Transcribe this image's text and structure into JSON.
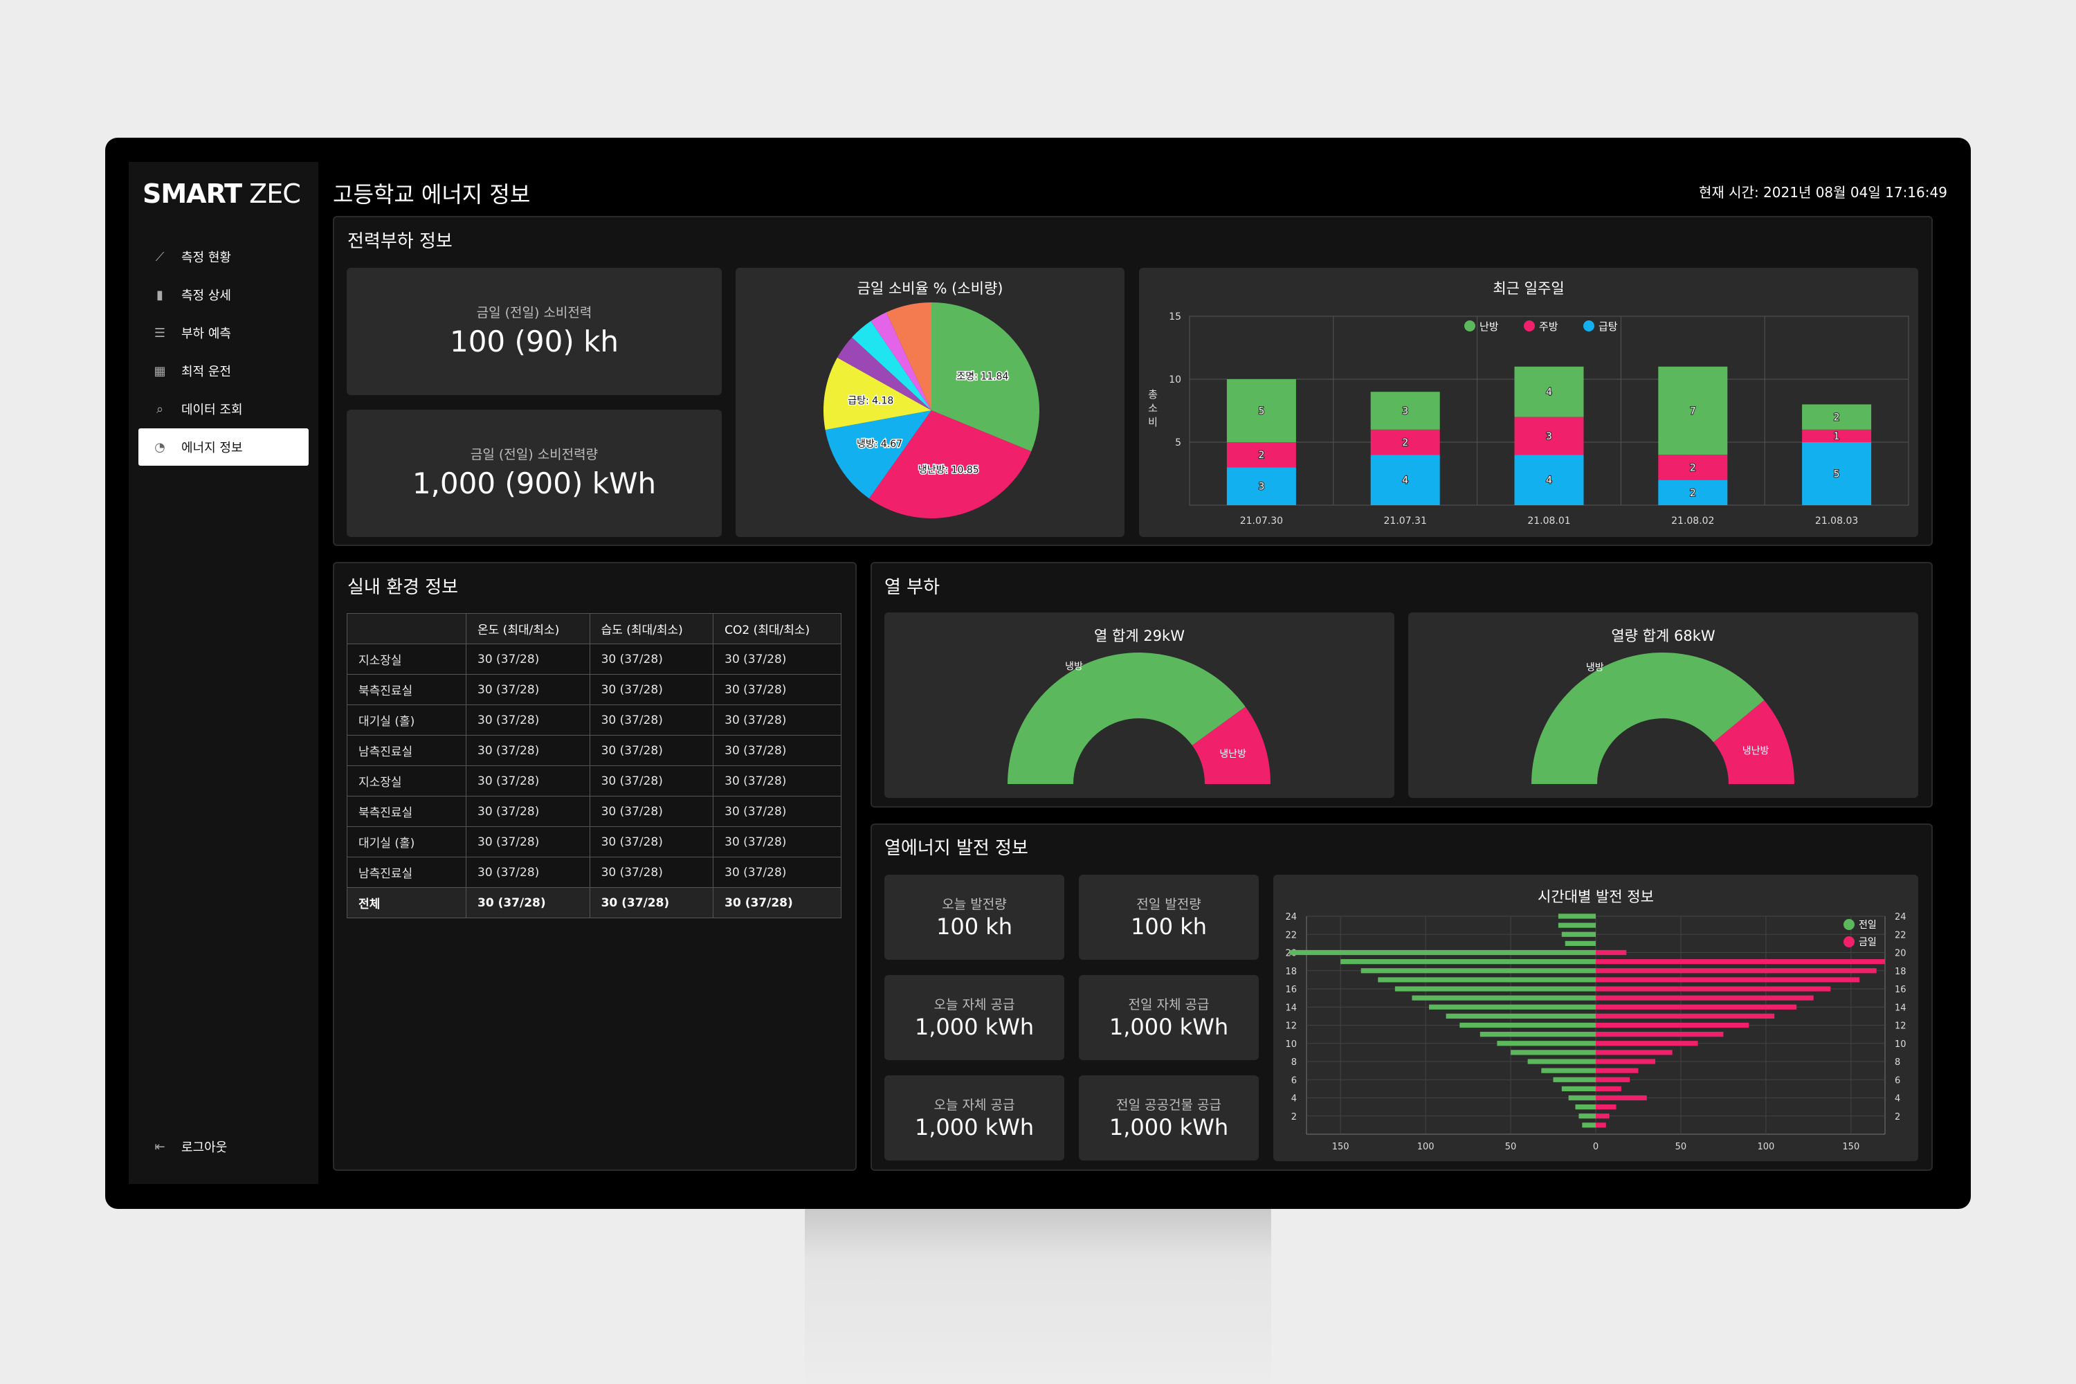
{
  "app": {
    "brand_bold": "SMART",
    "brand_light": " ZEC",
    "page_title": "고등학교 에너지 정보",
    "clock": "현재 시간: 2021년 08월 04일 17:16:49"
  },
  "nav": [
    {
      "label": "측정 현황",
      "icon": "trend-icon"
    },
    {
      "label": "측정 상세",
      "icon": "bar-chart-icon"
    },
    {
      "label": "부하 예측",
      "icon": "gantt-icon"
    },
    {
      "label": "최적 운전",
      "icon": "table-icon"
    },
    {
      "label": "데이터 조회",
      "icon": "search-icon"
    },
    {
      "label": "에너지 정보",
      "icon": "pie-icon",
      "active": true
    }
  ],
  "logout": "로그아웃",
  "power": {
    "title": "전력부하 정보",
    "card1_label": "금일 (전일) 소비전력",
    "card1_value": "100 (90) kh",
    "card2_label": "금일 (전일) 소비전력량",
    "card2_value": "1,000 (900) kWh",
    "pie_title": "금일 소비율 % (소비량)",
    "week_title": "최근 일주일"
  },
  "indoor": {
    "title": "실내 환경 정보",
    "headers": [
      "",
      "온도 (최대/최소)",
      "습도 (최대/최소)",
      "CO2 (최대/최소)"
    ],
    "rows": [
      [
        "지소장실",
        "30 (37/28)",
        "30 (37/28)",
        "30 (37/28)"
      ],
      [
        "북측진료실",
        "30 (37/28)",
        "30 (37/28)",
        "30 (37/28)"
      ],
      [
        "대기실 (홀)",
        "30 (37/28)",
        "30 (37/28)",
        "30 (37/28)"
      ],
      [
        "남측진료실",
        "30 (37/28)",
        "30 (37/28)",
        "30 (37/28)"
      ],
      [
        "지소장실",
        "30 (37/28)",
        "30 (37/28)",
        "30 (37/28)"
      ],
      [
        "북측진료실",
        "30 (37/28)",
        "30 (37/28)",
        "30 (37/28)"
      ],
      [
        "대기실 (홀)",
        "30 (37/28)",
        "30 (37/28)",
        "30 (37/28)"
      ],
      [
        "남측진료실",
        "30 (37/28)",
        "30 (37/28)",
        "30 (37/28)"
      ],
      [
        "전체",
        "30 (37/28)",
        "30 (37/28)",
        "30 (37/28)"
      ]
    ]
  },
  "heat": {
    "title": "열 부하",
    "gauge1_title": "열 합계 29kW",
    "gauge2_title": "열량 합계 68kW"
  },
  "gen": {
    "title": "열에너지 발전 정보",
    "cards": [
      {
        "label": "오늘 발전량",
        "value": "100 kh"
      },
      {
        "label": "전일 발전량",
        "value": "100 kh"
      },
      {
        "label": "오늘 자체 공급",
        "value": "1,000 kWh"
      },
      {
        "label": "전일 자체 공급",
        "value": "1,000 kWh"
      },
      {
        "label": "오늘 자체 공급",
        "value": "1,000 kWh"
      },
      {
        "label": "전일 공공건물 공급",
        "value": "1,000 kWh"
      }
    ],
    "hourly_title": "시간대별 발전 정보"
  },
  "colors": {
    "green": "#5cb85c",
    "pink": "#f0206a",
    "blue": "#12b0ef",
    "yellow": "#f0f037"
  },
  "chart_data": [
    {
      "type": "pie",
      "title": "금일 소비율 % (소비량)",
      "slices": [
        {
          "label": "조명: 11.84",
          "value": 11.84,
          "color": "#5cb85c"
        },
        {
          "label": "냉난방: 10.85",
          "value": 10.85,
          "color": "#f0206a"
        },
        {
          "label": "냉방: 4.67",
          "value": 4.67,
          "color": "#12b0ef"
        },
        {
          "label": "급탕: 4.18",
          "value": 4.18,
          "color": "#f0f037"
        },
        {
          "label": "",
          "value": 1.4,
          "color": "#9b47b5"
        },
        {
          "label": "",
          "value": 1.4,
          "color": "#1fe5f0"
        },
        {
          "label": "",
          "value": 1.0,
          "color": "#e364e8"
        },
        {
          "label": "",
          "value": 2.6,
          "color": "#f47a50"
        }
      ]
    },
    {
      "type": "bar",
      "stacked": true,
      "title": "최근 일주일",
      "ylabel": "총 소 비",
      "categories": [
        "21.07.30",
        "21.07.31",
        "21.08.01",
        "21.08.02",
        "21.08.03"
      ],
      "ylim": [
        0,
        15
      ],
      "yticks": [
        5,
        10,
        15
      ],
      "series": [
        {
          "name": "급탕",
          "color": "#12b0ef",
          "values": [
            3,
            4,
            4,
            2,
            5
          ]
        },
        {
          "name": "주방",
          "color": "#f0206a",
          "values": [
            2,
            2,
            3,
            2,
            1
          ]
        },
        {
          "name": "난방",
          "color": "#5cb85c",
          "values": [
            5,
            3,
            4,
            7,
            2
          ]
        }
      ]
    },
    {
      "type": "gauge",
      "title": "열 합계 29kW",
      "slices": [
        {
          "label": "냉방",
          "value": 80,
          "color": "#5cb85c"
        },
        {
          "label": "냉난방",
          "value": 20,
          "color": "#f0206a"
        }
      ]
    },
    {
      "type": "gauge",
      "title": "열량 합계 68kW",
      "slices": [
        {
          "label": "냉방",
          "value": 78,
          "color": "#5cb85c"
        },
        {
          "label": "냉난방",
          "value": 22,
          "color": "#f0206a"
        }
      ]
    },
    {
      "type": "bar",
      "orientation": "horizontal",
      "mirrored": true,
      "title": "시간대별 발전 정보",
      "hours": [
        1,
        2,
        3,
        4,
        5,
        6,
        7,
        8,
        9,
        10,
        11,
        12,
        13,
        14,
        15,
        16,
        17,
        18,
        19,
        20,
        21,
        22,
        23,
        24
      ],
      "yticks": [
        2,
        4,
        6,
        8,
        10,
        12,
        14,
        16,
        18,
        20,
        22,
        24
      ],
      "xticks": [
        150,
        100,
        50,
        0,
        50,
        100,
        150
      ],
      "xmax": 170,
      "series": [
        {
          "name": "전일",
          "color": "#5cb85c",
          "side": "left",
          "values": [
            8,
            10,
            12,
            16,
            20,
            25,
            32,
            40,
            50,
            58,
            68,
            80,
            88,
            98,
            108,
            118,
            128,
            138,
            150,
            180,
            18,
            20,
            22,
            22
          ]
        },
        {
          "name": "금일",
          "color": "#f0206a",
          "side": "right",
          "values": [
            6,
            8,
            12,
            30,
            15,
            20,
            25,
            35,
            45,
            60,
            75,
            90,
            105,
            118,
            128,
            138,
            155,
            165,
            170,
            18,
            0,
            0,
            0,
            0
          ]
        }
      ]
    }
  ]
}
